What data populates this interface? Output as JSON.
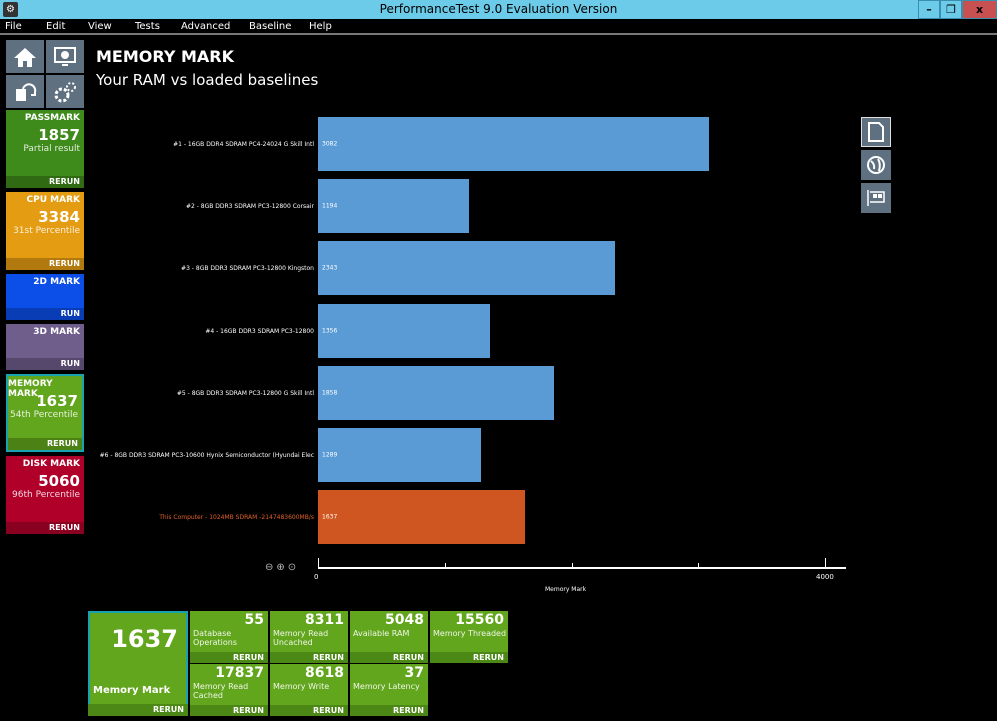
{
  "window": {
    "title": "PerformanceTest 9.0 Evaluation Version",
    "minimize": "–",
    "restore": "❐",
    "close": "x"
  },
  "menu": [
    "File",
    "Edit",
    "View",
    "Tests",
    "Advanced",
    "Baseline",
    "Help"
  ],
  "sidebar": {
    "tiles": [
      {
        "title": "PASSMARK",
        "value": "1857",
        "sub": "Partial result",
        "action": "RERUN",
        "color": "#3e8a1a"
      },
      {
        "title": "CPU MARK",
        "value": "3384",
        "sub": "31st Percentile",
        "action": "RERUN",
        "color": "#e49c12"
      },
      {
        "title": "2D MARK",
        "value": "",
        "sub": "",
        "action": "RUN",
        "color": "#0b4fe8"
      },
      {
        "title": "3D MARK",
        "value": "",
        "sub": "",
        "action": "RUN",
        "color": "#6f5d8c"
      },
      {
        "title": "MEMORY MARK",
        "value": "1637",
        "sub": "54th Percentile",
        "action": "RERUN",
        "color": "#61a61c"
      },
      {
        "title": "DISK MARK",
        "value": "5060",
        "sub": "96th Percentile",
        "action": "RERUN",
        "color": "#b0002a"
      }
    ]
  },
  "main": {
    "heading": "MEMORY MARK",
    "subheading": "Your RAM vs loaded baselines"
  },
  "chart_data": {
    "type": "bar",
    "orientation": "horizontal",
    "categories": [
      "#1 - 16GB DDR4 SDRAM PC4-24024 G Skill Intl",
      "#2 - 8GB DDR3 SDRAM PC3-12800 Corsair",
      "#3 - 8GB DDR3 SDRAM PC3-12800 Kingston",
      "#4 - 16GB DDR3 SDRAM PC3-12800",
      "#5 - 8GB DDR3 SDRAM PC3-12800 G Skill Intl",
      "#6 - 8GB DDR3 SDRAM PC3-10600 Hynix Semiconductor (Hyundai Elec",
      "This Computer - 1024MB SDRAM -2147483600MB/s"
    ],
    "values": [
      3082,
      1194,
      2343,
      1356,
      1858,
      1289,
      1637
    ],
    "colors": [
      "#5b9bd5",
      "#5b9bd5",
      "#5b9bd5",
      "#5b9bd5",
      "#5b9bd5",
      "#5b9bd5",
      "#cf5620"
    ],
    "highlight_label_color": "#e0602a",
    "xlabel": "Memory Mark",
    "xlim": [
      0,
      4000
    ],
    "xticks": [
      0,
      1000,
      2000,
      3000,
      4000
    ],
    "xtick_labels": [
      "0",
      "4000"
    ]
  },
  "bottom": {
    "main": {
      "value": "1637",
      "label": "Memory Mark",
      "action": "RERUN"
    },
    "tests": [
      {
        "value": "55",
        "label": "Database Operations",
        "action": "RERUN"
      },
      {
        "value": "8311",
        "label": "Memory Read Uncached",
        "action": "RERUN"
      },
      {
        "value": "5048",
        "label": "Available RAM",
        "action": "RERUN"
      },
      {
        "value": "15560",
        "label": "Memory Threaded",
        "action": "RERUN"
      },
      {
        "value": "17837",
        "label": "Memory Read Cached",
        "action": "RERUN"
      },
      {
        "value": "8618",
        "label": "Memory Write",
        "action": "RERUN"
      },
      {
        "value": "37",
        "label": "Memory Latency",
        "action": "RERUN"
      }
    ]
  }
}
